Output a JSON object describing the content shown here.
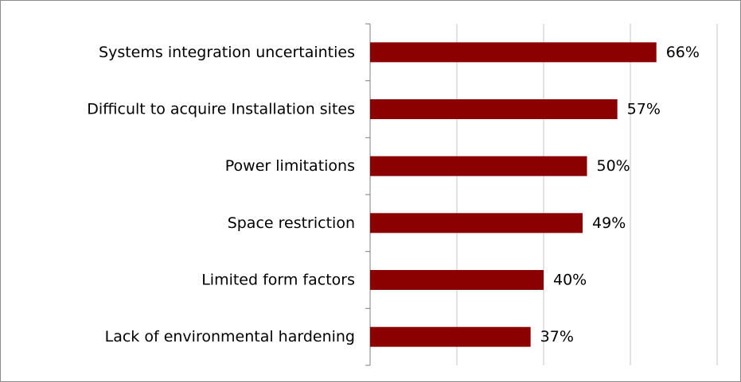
{
  "chart_data": {
    "type": "bar",
    "orientation": "horizontal",
    "categories": [
      "Systems integration uncertainties",
      "Difficult to acquire Installation sites",
      "Power limitations",
      "Space restriction",
      "Limited form factors",
      "Lack of environmental hardening"
    ],
    "values": [
      66,
      57,
      50,
      49,
      40,
      37
    ],
    "data_labels": [
      "66%",
      "57%",
      "50%",
      "49%",
      "40%",
      "37%"
    ],
    "unit": "%",
    "xlim": [
      0,
      80
    ],
    "gridlines": true,
    "x_tick_labels_visible": false,
    "legend": "none",
    "title": "",
    "xlabel": "",
    "ylabel": "",
    "colors": {
      "bar": "#8b0000",
      "grid": "#d9d9d9",
      "axis": "#7f7f7f",
      "border": "#8c8c8c"
    }
  }
}
